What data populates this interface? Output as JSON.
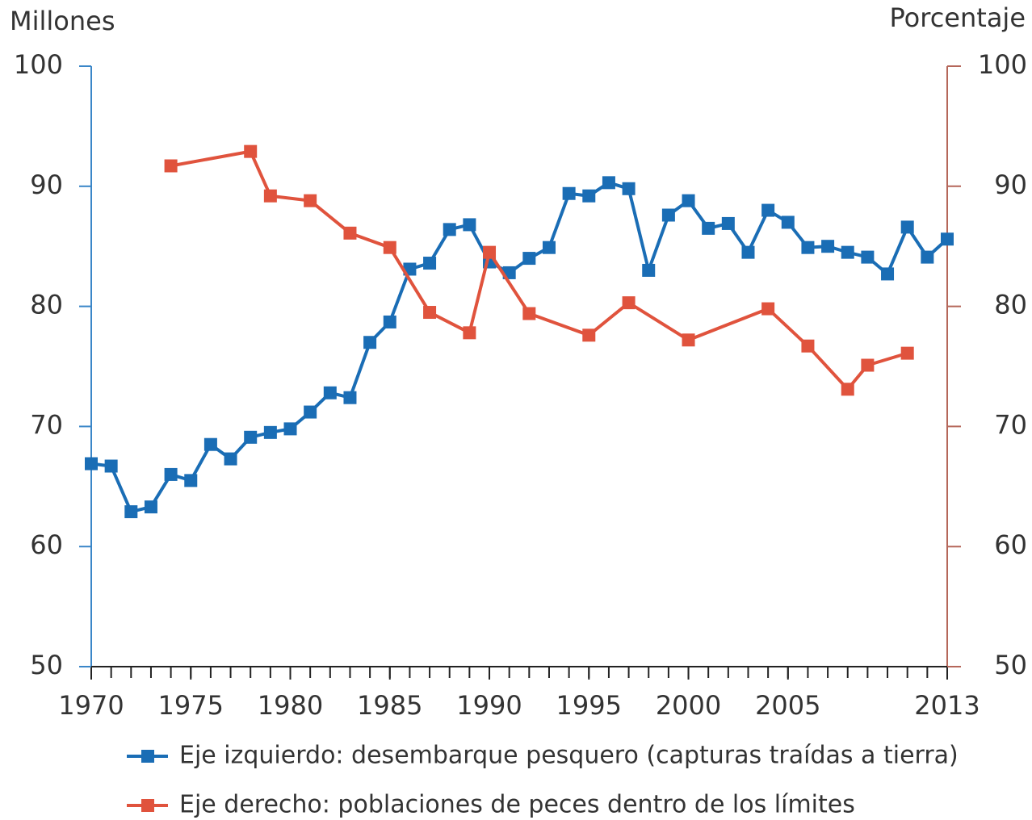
{
  "chart_data": {
    "type": "line",
    "y_label": "Millones",
    "y2_label": "Porcentaje",
    "xlim": [
      1970,
      2013
    ],
    "xticks": [
      1970,
      1975,
      1980,
      1985,
      1990,
      1995,
      2000,
      2005,
      2013
    ],
    "ylim": [
      50,
      100
    ],
    "yticks": [
      50,
      60,
      70,
      80,
      90,
      100
    ],
    "y2lim": [
      50,
      100
    ],
    "y2ticks": [
      50,
      60,
      70,
      80,
      90,
      100
    ],
    "legend": "bottom",
    "series": [
      {
        "name": "Eje izquierdo: desembarque pesquero (capturas traídas a tierra)",
        "color": "#1a6db5",
        "axis": "y",
        "x": [
          1970,
          1971,
          1972,
          1973,
          1974,
          1975,
          1976,
          1977,
          1978,
          1979,
          1980,
          1981,
          1982,
          1983,
          1984,
          1985,
          1986,
          1987,
          1988,
          1989,
          1990,
          1991,
          1992,
          1993,
          1994,
          1995,
          1996,
          1997,
          1998,
          1999,
          2000,
          2001,
          2002,
          2003,
          2004,
          2005,
          2006,
          2007,
          2008,
          2009,
          2010,
          2011,
          2012,
          2013
        ],
        "values": [
          66.9,
          66.7,
          62.9,
          63.3,
          66.0,
          65.5,
          68.5,
          67.3,
          69.1,
          69.5,
          69.8,
          71.2,
          72.8,
          72.4,
          77.0,
          78.7,
          83.1,
          83.6,
          86.4,
          86.8,
          83.7,
          82.8,
          84.0,
          84.9,
          89.4,
          89.2,
          90.3,
          89.8,
          83.0,
          87.6,
          88.8,
          86.5,
          86.9,
          84.5,
          88.0,
          87.0,
          84.9,
          85.0,
          84.5,
          84.1,
          82.7,
          86.6,
          84.1,
          85.6
        ]
      },
      {
        "name": "Eje derecho: poblaciones de peces dentro de los límites",
        "color": "#e0533d",
        "axis": "y2",
        "x": [
          1974,
          1978,
          1979,
          1981,
          1983,
          1985,
          1987,
          1989,
          1990,
          1992,
          1995,
          1997,
          2000,
          2004,
          2006,
          2008,
          2009,
          2011
        ],
        "values": [
          91.7,
          92.9,
          89.2,
          88.8,
          86.1,
          84.9,
          79.5,
          77.8,
          84.5,
          79.4,
          77.6,
          80.3,
          77.2,
          79.8,
          76.7,
          73.1,
          75.1,
          76.1
        ]
      }
    ]
  }
}
